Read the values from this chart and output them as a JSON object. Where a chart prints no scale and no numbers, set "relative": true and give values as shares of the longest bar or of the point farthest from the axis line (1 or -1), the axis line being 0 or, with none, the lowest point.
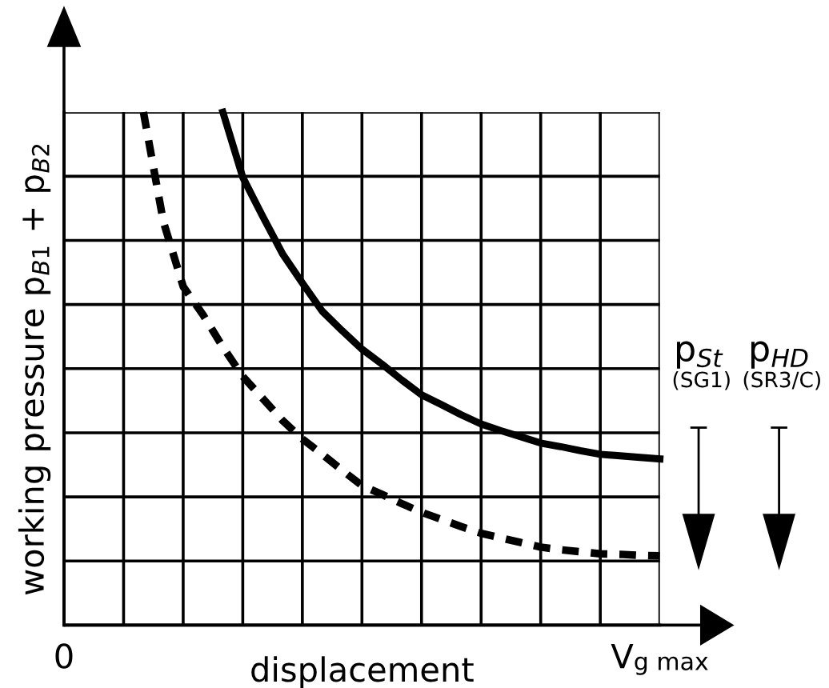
{
  "chart_data": {
    "type": "line",
    "relative": true,
    "xlabel": "displacement",
    "ylabel": "working pressure p$_{B1}$ + p$_{B2}$",
    "categories": [
      "0",
      null,
      null,
      null,
      null,
      null,
      null,
      null,
      null,
      null,
      null,
      null,
      null,
      null,
      null,
      null,
      null,
      null,
      null,
      null,
      null,
      null,
      null,
      null,
      null,
      null,
      null,
      null,
      null,
      null,
      "V$_{g max}$"
    ],
    "grid": true,
    "tick_labels": "x",
    "series": [
      {
        "color": "#000000",
        "line_style": "solid",
        "values": [
          null,
          null,
          null,
          null,
          null,
          null,
          null,
          null,
          1.0,
          0.873,
          0.797,
          0.724,
          0.667,
          0.612,
          0.574,
          0.538,
          0.509,
          0.478,
          0.449,
          0.43,
          0.41,
          0.392,
          0.379,
          0.367,
          0.355,
          0.348,
          0.34,
          0.333,
          0.33,
          0.327,
          0.324
        ]
      },
      {
        "color": "#000000",
        "line_style": "dashed",
        "values": [
          null,
          null,
          null,
          null,
          1.0,
          0.787,
          0.66,
          0.605,
          0.542,
          0.485,
          0.442,
          0.399,
          0.363,
          0.333,
          0.302,
          0.272,
          0.255,
          0.237,
          0.22,
          0.206,
          0.192,
          0.179,
          0.17,
          0.161,
          0.152,
          0.147,
          0.143,
          0.139,
          0.138,
          0.136,
          0.135
        ]
      }
    ],
    "annotations": [
      "p$_{St}$",
      "(SG1)",
      "p$_{HD}$",
      "(SR3/C)"
    ]
  }
}
